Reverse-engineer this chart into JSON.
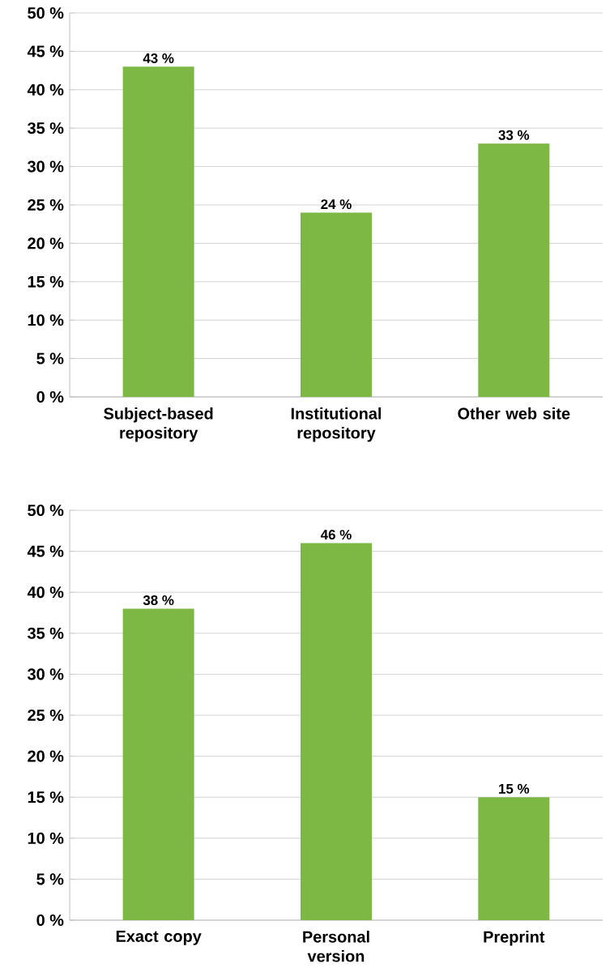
{
  "chart_data": [
    {
      "type": "bar",
      "categories": [
        "Subject-based repository",
        "Institutional repository",
        "Other web site"
      ],
      "values": [
        43,
        24,
        33
      ],
      "value_labels": [
        "43 %",
        "24 %",
        "33 %"
      ],
      "color": "#7cb843",
      "ylim": [
        0,
        50
      ],
      "yticks": [
        {
          "value": 0,
          "label": "0 %"
        },
        {
          "value": 5,
          "label": "5 %"
        },
        {
          "value": 10,
          "label": "10 %"
        },
        {
          "value": 15,
          "label": "15 %"
        },
        {
          "value": 20,
          "label": "20 %"
        },
        {
          "value": 25,
          "label": "25 %"
        },
        {
          "value": 30,
          "label": "30 %"
        },
        {
          "value": 35,
          "label": "35 %"
        },
        {
          "value": 40,
          "label": "40 %"
        },
        {
          "value": 45,
          "label": "45 %"
        },
        {
          "value": 50,
          "label": "50 %"
        }
      ],
      "grid": "y"
    },
    {
      "type": "bar",
      "categories": [
        "Exact copy",
        "Personal version",
        "Preprint"
      ],
      "values": [
        38,
        46,
        15
      ],
      "value_labels": [
        "38 %",
        "46 %",
        "15 %"
      ],
      "color": "#7cb843",
      "ylim": [
        0,
        50
      ],
      "yticks": [
        {
          "value": 0,
          "label": "0 %"
        },
        {
          "value": 5,
          "label": "5 %"
        },
        {
          "value": 10,
          "label": "10 %"
        },
        {
          "value": 15,
          "label": "15 %"
        },
        {
          "value": 20,
          "label": "20 %"
        },
        {
          "value": 25,
          "label": "25 %"
        },
        {
          "value": 30,
          "label": "30 %"
        },
        {
          "value": 35,
          "label": "35 %"
        },
        {
          "value": 40,
          "label": "40 %"
        },
        {
          "value": 45,
          "label": "45 %"
        },
        {
          "value": 50,
          "label": "50 %"
        }
      ],
      "grid": "y"
    }
  ]
}
